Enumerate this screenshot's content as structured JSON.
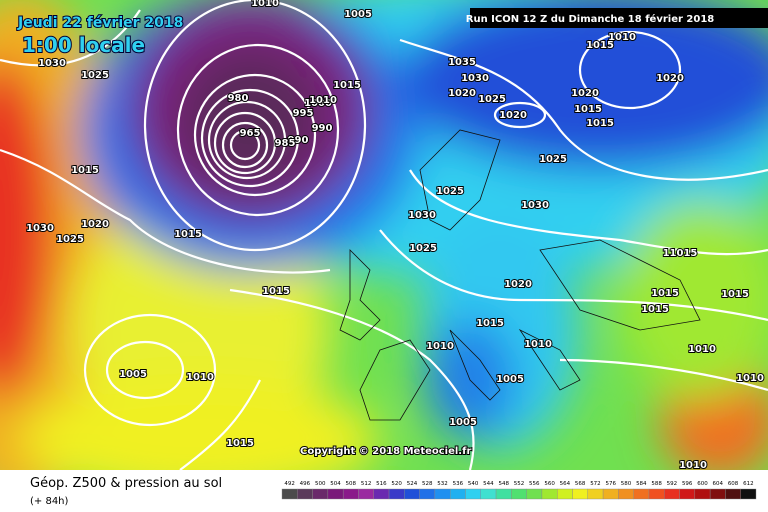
{
  "header": {
    "date": "Jeudi 22 février 2018",
    "time": "1:00 locale",
    "run": "Run ICON 12 Z du Dimanche 18 février 2018"
  },
  "copyright": "Copyright © 2018 Meteociel.fr",
  "isobar_labels": [
    "1010",
    "1005",
    "1030",
    "1025",
    "1035",
    "1030",
    "1020",
    "1025",
    "1010",
    "1015",
    "1020",
    "1020",
    "1015",
    "1015",
    "1020",
    "1025",
    "980",
    "965",
    "995",
    "990",
    "1000",
    "1010",
    "1015",
    "990",
    "985",
    "1015",
    "1025",
    "1030",
    "1030",
    "1030",
    "1025",
    "1020",
    "1015",
    "1025",
    "11015",
    "1020",
    "1015",
    "1015",
    "1015",
    "1015",
    "1015",
    "1010",
    "1010",
    "1005",
    "1010",
    "1005",
    "1010",
    "1010",
    "1005",
    "1015",
    "1010"
  ],
  "legend": {
    "title": "Géop. Z500 & pression au sol",
    "lead": "(+ 84h)",
    "scale": [
      492,
      496,
      500,
      504,
      508,
      512,
      516,
      520,
      524,
      528,
      532,
      536,
      540,
      544,
      548,
      552,
      556,
      560,
      564,
      568,
      572,
      576,
      580,
      584,
      588,
      592,
      596,
      600,
      604,
      608,
      612
    ],
    "colors": [
      "#4b4b4b",
      "#5a3a5a",
      "#6a2a6a",
      "#7a1a7a",
      "#8a1a8a",
      "#9a2aa0",
      "#6a2ab0",
      "#3a3ac8",
      "#2050d8",
      "#2070e8",
      "#2090f0",
      "#20b0f0",
      "#30d0f0",
      "#40e0d0",
      "#40e0a0",
      "#50e070",
      "#70e050",
      "#a0e830",
      "#d0f020",
      "#f0f020",
      "#f0d020",
      "#f0b020",
      "#f09020",
      "#f07020",
      "#f05020",
      "#e83020",
      "#d01818",
      "#b01010",
      "#801010",
      "#501010",
      "#101010"
    ]
  }
}
